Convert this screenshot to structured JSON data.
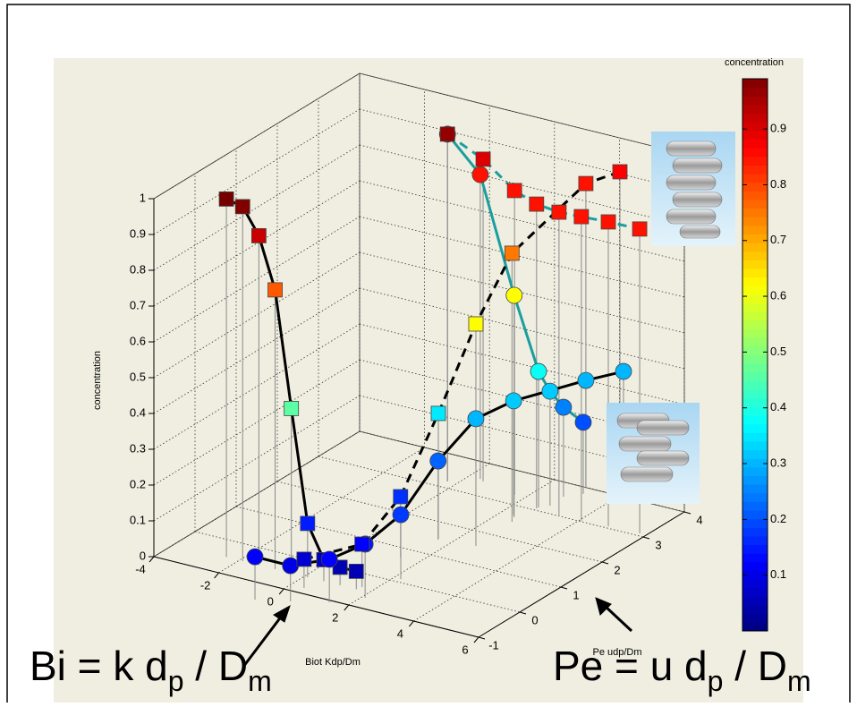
{
  "chart_data": {
    "type": "scatter3d",
    "xlabel": "Biot Kdp/Dm",
    "ylabel": "Pe udp/Dm",
    "zlabel": "concentration",
    "xlim": [
      -4,
      6
    ],
    "ylim": [
      -1,
      4
    ],
    "zlim": [
      0,
      1
    ],
    "xticks": [
      -4,
      -2,
      0,
      2,
      4,
      6
    ],
    "yticks": [
      -1,
      0,
      1,
      2,
      3,
      4
    ],
    "zticks": [
      0,
      0.1,
      0.2,
      0.3,
      0.4,
      0.5,
      0.6,
      0.7,
      0.8,
      0.9,
      1
    ],
    "grid": true,
    "colormap": "jet",
    "clim": [
      0,
      0.99
    ],
    "colorbar": {
      "label": "concentration",
      "ticks": [
        0.1,
        0.2,
        0.3,
        0.4,
        0.5,
        0.6,
        0.7,
        0.8,
        0.9
      ]
    },
    "series": [
      {
        "marker": "square",
        "line_color": "#000000",
        "line_style": "solid",
        "x": [
          -2.4,
          -1.9,
          -1.4,
          -0.9,
          -0.4,
          0.1,
          0.6,
          1.1,
          1.6
        ],
        "y": [
          -0.5,
          -0.5,
          -0.5,
          -0.5,
          -0.5,
          -0.5,
          -0.5,
          -0.5,
          -0.5
        ],
        "z": [
          1,
          0.99,
          0.92,
          0.78,
          0.46,
          0.15,
          0.06,
          0.05,
          0.05
        ]
      },
      {
        "marker": "circle",
        "line_color": "#000000",
        "line_style": "solid",
        "x": [
          -0.24,
          0.6,
          1.48,
          2.1,
          2.21,
          1.61,
          1.95,
          2.39,
          2.98,
          3.48
        ],
        "y": [
          -1.51,
          -1.31,
          -1.06,
          -0.68,
          0.1,
          1.48,
          2.13,
          2.7,
          3.99,
          4.51
        ],
        "z": [
          0.12,
          0.1,
          0.12,
          0.15,
          0.18,
          0.22,
          0.3,
          0.32,
          0.3,
          0.3
        ]
      },
      {
        "marker": "circle",
        "line_color": "#1a9e9e",
        "line_style": "solid",
        "x": [
          -0.28,
          0.35,
          2.47,
          2.65,
          2.84,
          2.81,
          3.14
        ],
        "y": [
          3.2,
          3.5,
          2.65,
          3.1,
          3.23,
          3.58,
          3.8
        ],
        "z": [
          0.97,
          0.85,
          0.62,
          0.38,
          0.32,
          0.25,
          0.2
        ]
      },
      {
        "marker": "square",
        "line_color": "#1a9e9e",
        "line_style": "dashed",
        "x": [
          -0.28,
          0.5,
          1.67,
          2.64,
          3.42,
          4.07,
          4.85,
          5.79
        ],
        "y": [
          3.2,
          3.45,
          3.29,
          3.06,
          2.99,
          3.02,
          3.06,
          3.08
        ],
        "z": [
          0.97,
          0.9,
          0.85,
          0.85,
          0.85,
          0.85,
          0.85,
          0.85
        ]
      },
      {
        "marker": "square",
        "line_color": "#000000",
        "line_style": "dashed",
        "x": [
          0.41,
          1.65,
          1.43,
          1.58,
          2.66,
          2.58,
          2.98,
          3.56
        ],
        "y": [
          -0.83,
          -0.4,
          0.71,
          1.51,
          1.57,
          2.51,
          3.99,
          4.36
        ],
        "z": [
          0.08,
          0.12,
          0.17,
          0.35,
          0.62,
          0.75,
          0.85,
          0.87
        ]
      }
    ],
    "annotations": [
      {
        "parts": [
          "Bi = k d",
          "p",
          " / D",
          "m"
        ]
      },
      {
        "parts": [
          "Pe = u d",
          "p",
          " / D",
          "m"
        ]
      }
    ]
  }
}
